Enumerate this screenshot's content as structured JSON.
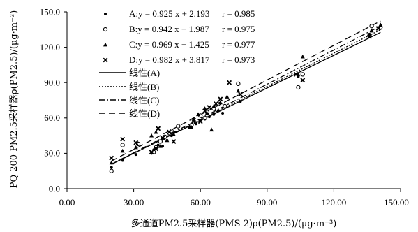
{
  "chart_data": {
    "type": "scatter",
    "xlabel": "多通道PM2.5采样器(PMS 2)ρ(PM2.5)/(μg·m⁻³)",
    "ylabel": "PQ 200 PM2.5采样器ρ(PM2.5)/(μg·m⁻³)",
    "xlim": [
      0,
      150
    ],
    "ylim": [
      0,
      150
    ],
    "x_ticks": [
      "0.00",
      "30.00",
      "60.00",
      "90.00",
      "120.00",
      "150.00"
    ],
    "y_ticks": [
      "0.0",
      "30.0",
      "60.0",
      "90.0",
      "120.0",
      "150.0"
    ],
    "series": [
      {
        "name": "A",
        "marker": "dot",
        "equation": "A:y = 0.925 x + 2.193",
        "r_label": "r = 0.985",
        "slope": 0.925,
        "intercept": 2.193,
        "points": [
          [
            20,
            18
          ],
          [
            25,
            24
          ],
          [
            31,
            29
          ],
          [
            38,
            30
          ],
          [
            39,
            33
          ],
          [
            41,
            37
          ],
          [
            43,
            36
          ],
          [
            45,
            41
          ],
          [
            47,
            45
          ],
          [
            49,
            48
          ],
          [
            55,
            52
          ],
          [
            58,
            55
          ],
          [
            60,
            58
          ],
          [
            62,
            59
          ],
          [
            64,
            61
          ],
          [
            66,
            63
          ],
          [
            68,
            66
          ],
          [
            70,
            64
          ],
          [
            78,
            74
          ],
          [
            104,
            95
          ],
          [
            106,
            97
          ],
          [
            136,
            131
          ],
          [
            137,
            134
          ],
          [
            141,
            136
          ]
        ]
      },
      {
        "name": "B",
        "marker": "circle",
        "equation": "B:y = 0.942 x + 1.987",
        "r_label": "r = 0.975",
        "slope": 0.942,
        "intercept": 1.987,
        "points": [
          [
            20,
            15
          ],
          [
            25,
            37
          ],
          [
            32,
            38
          ],
          [
            39,
            31
          ],
          [
            40,
            35
          ],
          [
            42,
            40
          ],
          [
            44,
            44
          ],
          [
            47,
            49
          ],
          [
            50,
            53
          ],
          [
            56,
            54
          ],
          [
            60,
            62
          ],
          [
            62,
            60
          ],
          [
            63,
            65
          ],
          [
            66,
            68
          ],
          [
            68,
            72
          ],
          [
            71,
            70
          ],
          [
            77,
            89
          ],
          [
            104,
            86
          ],
          [
            106,
            97
          ],
          [
            137,
            138
          ],
          [
            141,
            137
          ]
        ]
      },
      {
        "name": "C",
        "marker": "triangle",
        "equation": "C:y = 0.969 x + 1.425",
        "r_label": "r = 0.977",
        "slope": 0.969,
        "intercept": 1.425,
        "points": [
          [
            20,
            22
          ],
          [
            25,
            32
          ],
          [
            31,
            35
          ],
          [
            38,
            45
          ],
          [
            40,
            48
          ],
          [
            42,
            36
          ],
          [
            45,
            41
          ],
          [
            48,
            46
          ],
          [
            56,
            52
          ],
          [
            57,
            59
          ],
          [
            59,
            63
          ],
          [
            62,
            68
          ],
          [
            63,
            64
          ],
          [
            65,
            50
          ],
          [
            66,
            70
          ],
          [
            69,
            73
          ],
          [
            72,
            78
          ],
          [
            77,
            83
          ],
          [
            104,
            97
          ],
          [
            106,
            112
          ],
          [
            137,
            134
          ],
          [
            141,
            139
          ]
        ]
      },
      {
        "name": "D",
        "marker": "cross",
        "equation": "D:y = 0.982 x + 3.817",
        "r_label": "r = 0.973",
        "slope": 0.982,
        "intercept": 3.817,
        "points": [
          [
            20,
            26
          ],
          [
            25,
            42
          ],
          [
            31,
            39
          ],
          [
            38,
            31
          ],
          [
            40,
            34
          ],
          [
            41,
            51
          ],
          [
            43,
            43
          ],
          [
            46,
            48
          ],
          [
            48,
            40
          ],
          [
            57,
            58
          ],
          [
            60,
            57
          ],
          [
            62,
            66
          ],
          [
            64,
            69
          ],
          [
            67,
            72
          ],
          [
            69,
            76
          ],
          [
            73,
            90
          ],
          [
            78,
            80
          ],
          [
            103,
            97
          ],
          [
            106,
            92
          ],
          [
            136,
            129
          ],
          [
            140,
            136
          ]
        ]
      }
    ],
    "trendlines": [
      {
        "label": "线性(A)",
        "style": "solid",
        "slope": 0.925,
        "intercept": 2.193
      },
      {
        "label": "线性(B)",
        "style": "dotted",
        "slope": 0.942,
        "intercept": 1.987
      },
      {
        "label": "线性(C)",
        "style": "dashdot",
        "slope": 0.969,
        "intercept": 1.425
      },
      {
        "label": "线性(D)",
        "style": "longdash",
        "slope": 0.982,
        "intercept": 3.817
      }
    ],
    "grid": false,
    "legend_position": "top-left",
    "colors": {
      "marker": "#000000",
      "line": "#000000",
      "background": "#ffffff"
    }
  }
}
